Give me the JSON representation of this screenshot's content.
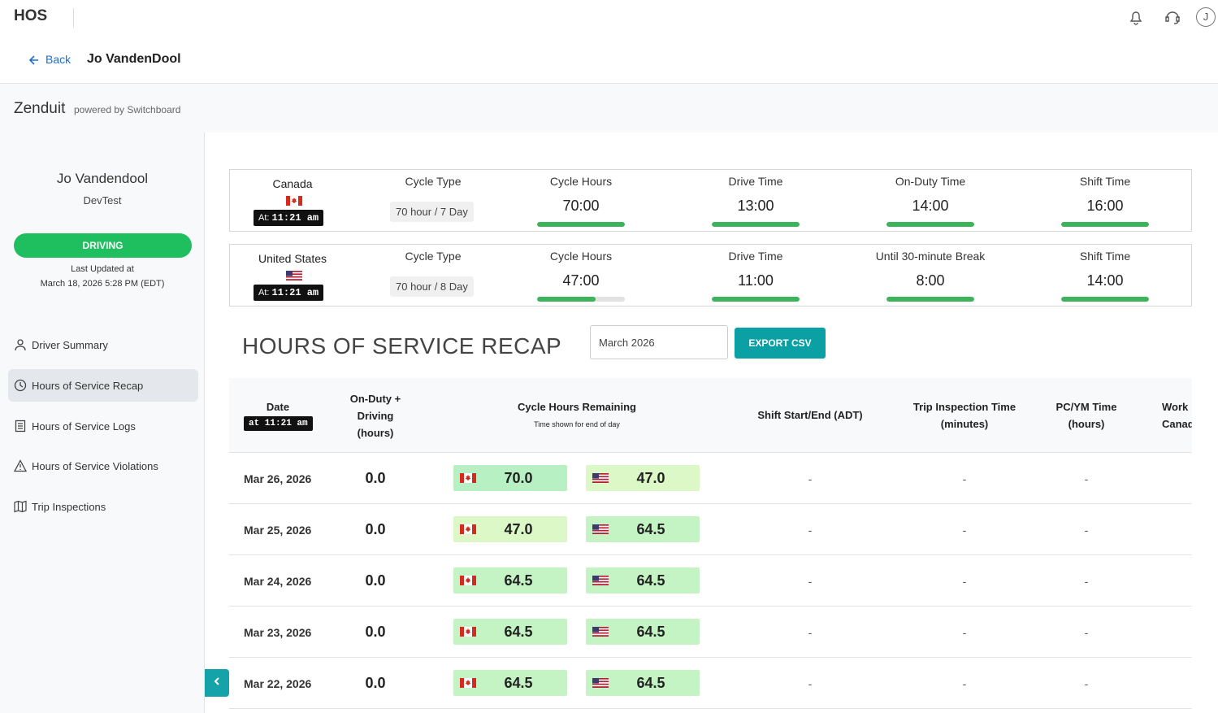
{
  "topbar": {
    "title": "HOS",
    "avatar": "J"
  },
  "header": {
    "back": "Back",
    "name": "Jo VandenDool"
  },
  "brand": {
    "name": "Zenduit",
    "tagline": "powered by Switchboard"
  },
  "sidebar": {
    "driver_name": "Jo Vandendool",
    "group": "DevTest",
    "status": "DRIVING",
    "updated_label": "Last Updated at",
    "updated_time": "March 18, 2026 5:28 PM (EDT)",
    "nav": [
      "Driver Summary",
      "Hours of Service Recap",
      "Hours of Service Logs",
      "Hours of Service Violations",
      "Trip Inspections"
    ]
  },
  "summary": [
    {
      "country": "Canada",
      "flag": "ca",
      "at_label": "At:",
      "at_time": "11:21 am",
      "cycle_type_label": "Cycle Type",
      "cycle_type": "70 hour / 7 Day",
      "metrics": [
        {
          "label": "Cycle Hours",
          "value": "70:00",
          "progress": 100
        },
        {
          "label": "Drive Time",
          "value": "13:00",
          "progress": 100
        },
        {
          "label": "On-Duty Time",
          "value": "14:00",
          "progress": 100
        },
        {
          "label": "Shift Time",
          "value": "16:00",
          "progress": 100
        }
      ]
    },
    {
      "country": "United States",
      "flag": "us",
      "at_label": "At:",
      "at_time": "11:21 am",
      "cycle_type_label": "Cycle Type",
      "cycle_type": "70 hour / 8 Day",
      "metrics": [
        {
          "label": "Cycle Hours",
          "value": "47:00",
          "progress": 67
        },
        {
          "label": "Drive Time",
          "value": "11:00",
          "progress": 100
        },
        {
          "label": "Until 30-minute Break",
          "value": "8:00",
          "progress": 100
        },
        {
          "label": "Shift Time",
          "value": "14:00",
          "progress": 100
        }
      ]
    }
  ],
  "recap": {
    "title": "HOURS OF SERVICE RECAP",
    "month": "March 2026",
    "export": "EXPORT CSV",
    "columns": {
      "date": "Date",
      "date_at": "at 11:21 am",
      "on_duty": "On-Duty + Driving (hours)",
      "cycle": "Cycle Hours Remaining",
      "cycle_note": "Time shown for end of day",
      "shift": "Shift Start/End (ADT)",
      "trip": "Trip Inspection Time (minutes)",
      "pcym": "PC/YM Time (hours)",
      "work": "Work Canada"
    },
    "rows": [
      {
        "date": "Mar 26, 2026",
        "on_duty": "0.0",
        "canada": {
          "value": "70.0",
          "color": "#b7f0c3"
        },
        "us": {
          "value": "47.0",
          "color": "#dcf8c6"
        },
        "shift": "-",
        "trip": "-",
        "pcym": "-"
      },
      {
        "date": "Mar 25, 2026",
        "on_duty": "0.0",
        "canada": {
          "value": "47.0",
          "color": "#dcf8c6"
        },
        "us": {
          "value": "64.5",
          "color": "#c4f3c4"
        },
        "shift": "-",
        "trip": "-",
        "pcym": "-"
      },
      {
        "date": "Mar 24, 2026",
        "on_duty": "0.0",
        "canada": {
          "value": "64.5",
          "color": "#c4f3c4"
        },
        "us": {
          "value": "64.5",
          "color": "#c4f3c4"
        },
        "shift": "-",
        "trip": "-",
        "pcym": "-"
      },
      {
        "date": "Mar 23, 2026",
        "on_duty": "0.0",
        "canada": {
          "value": "64.5",
          "color": "#c4f3c4"
        },
        "us": {
          "value": "64.5",
          "color": "#c4f3c4"
        },
        "shift": "-",
        "trip": "-",
        "pcym": "-"
      },
      {
        "date": "Mar 22, 2026",
        "on_duty": "0.0",
        "canada": {
          "value": "64.5",
          "color": "#c4f3c4"
        },
        "us": {
          "value": "64.5",
          "color": "#c4f3c4"
        },
        "shift": "-",
        "trip": "-",
        "pcym": "-"
      }
    ]
  }
}
